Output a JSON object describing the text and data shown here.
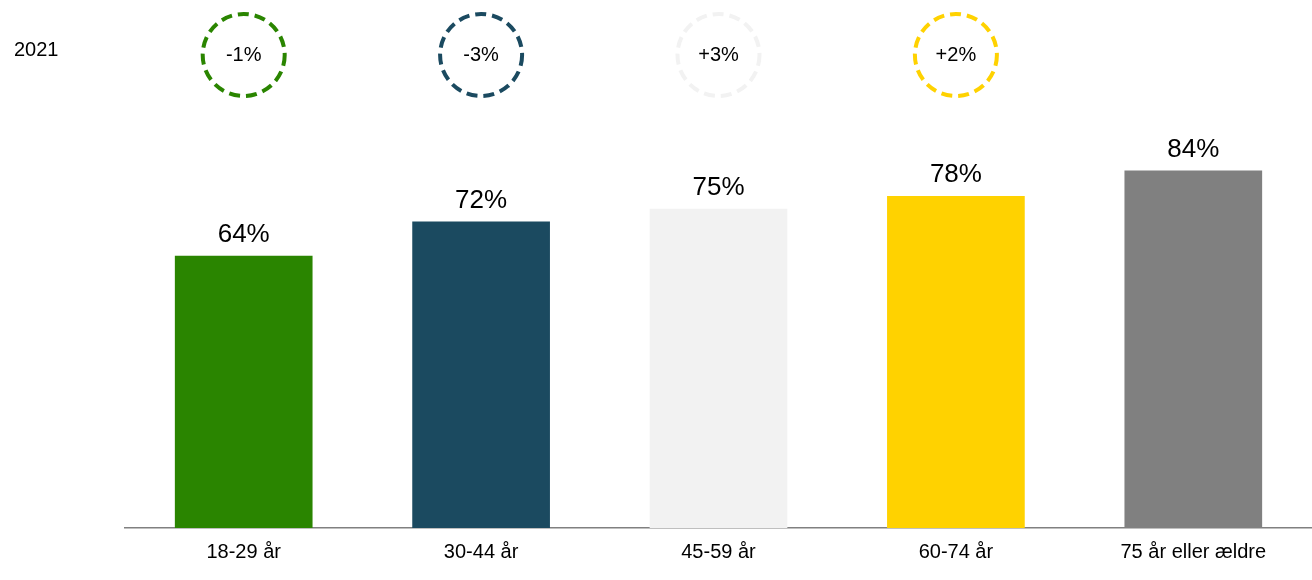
{
  "chart_data": {
    "type": "bar",
    "categories": [
      "18-29 år",
      "30-44 år",
      "45-59 år",
      "60-74 år",
      "75 år eller ældre"
    ],
    "values": [
      64,
      72,
      75,
      78,
      84
    ],
    "colors": [
      "#2a8500",
      "#1b4a60",
      "#f2f2f2",
      "#ffd200",
      "#808080"
    ],
    "value_labels": [
      "64%",
      "72%",
      "75%",
      "78%",
      "84%"
    ],
    "annotations": [
      "2021",
      "-1%",
      "-3%",
      "+3%",
      "+2%"
    ],
    "grid": false,
    "legend": false
  }
}
